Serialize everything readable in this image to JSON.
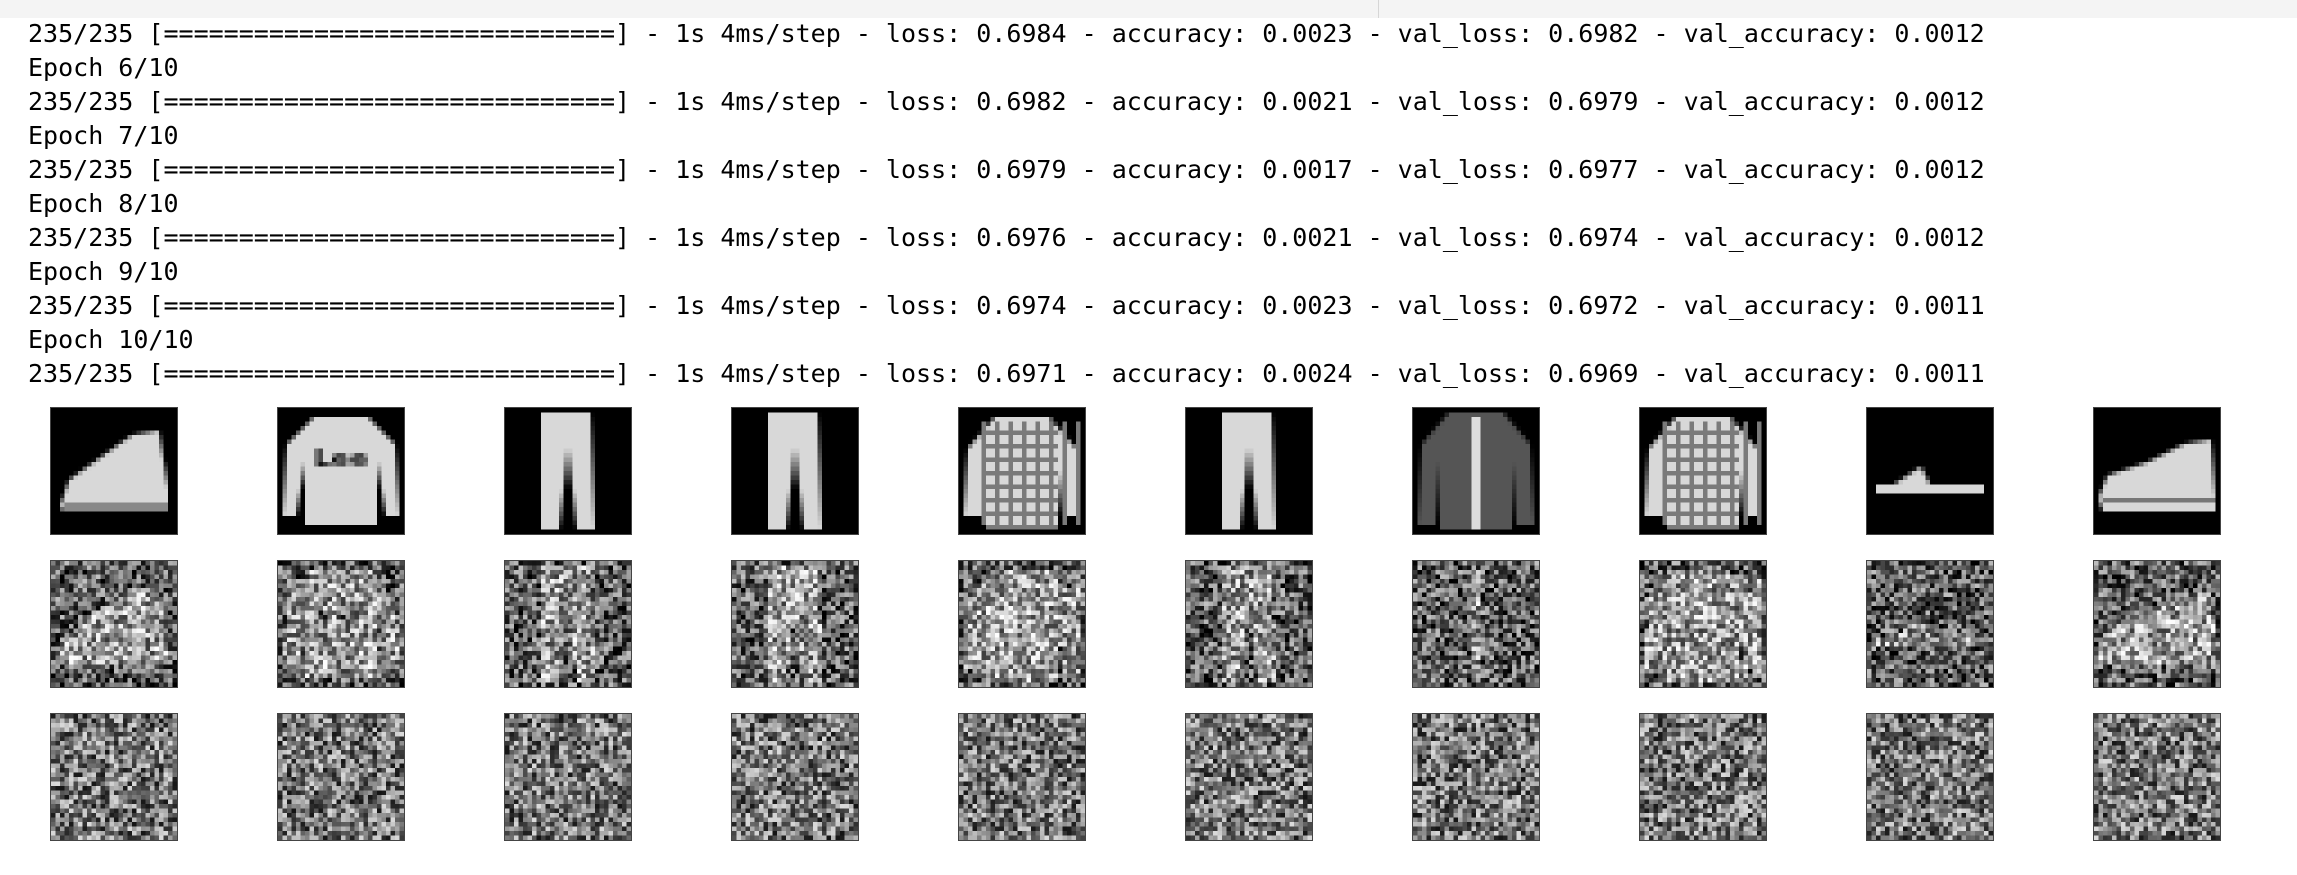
{
  "log_lines": [
    "235/235 [==============================] - 1s 4ms/step - loss: 0.6984 - accuracy: 0.0023 - val_loss: 0.6982 - val_accuracy: 0.0012",
    "Epoch 6/10",
    "235/235 [==============================] - 1s 4ms/step - loss: 0.6982 - accuracy: 0.0021 - val_loss: 0.6979 - val_accuracy: 0.0012",
    "Epoch 7/10",
    "235/235 [==============================] - 1s 4ms/step - loss: 0.6979 - accuracy: 0.0017 - val_loss: 0.6977 - val_accuracy: 0.0012",
    "Epoch 8/10",
    "235/235 [==============================] - 1s 4ms/step - loss: 0.6976 - accuracy: 0.0021 - val_loss: 0.6974 - val_accuracy: 0.0012",
    "Epoch 9/10",
    "235/235 [==============================] - 1s 4ms/step - loss: 0.6974 - accuracy: 0.0023 - val_loss: 0.6972 - val_accuracy: 0.0011",
    "Epoch 10/10",
    "235/235 [==============================] - 1s 4ms/step - loss: 0.6971 - accuracy: 0.0024 - val_loss: 0.6969 - val_accuracy: 0.0011"
  ],
  "image_grid": {
    "rows": [
      "original",
      "reconstruction",
      "noise"
    ],
    "columns": [
      "ankle-boot",
      "pullover",
      "trouser",
      "trouser",
      "shirt",
      "trouser",
      "coat",
      "shirt",
      "sandal",
      "sneaker"
    ],
    "logo_text": "Lee"
  }
}
